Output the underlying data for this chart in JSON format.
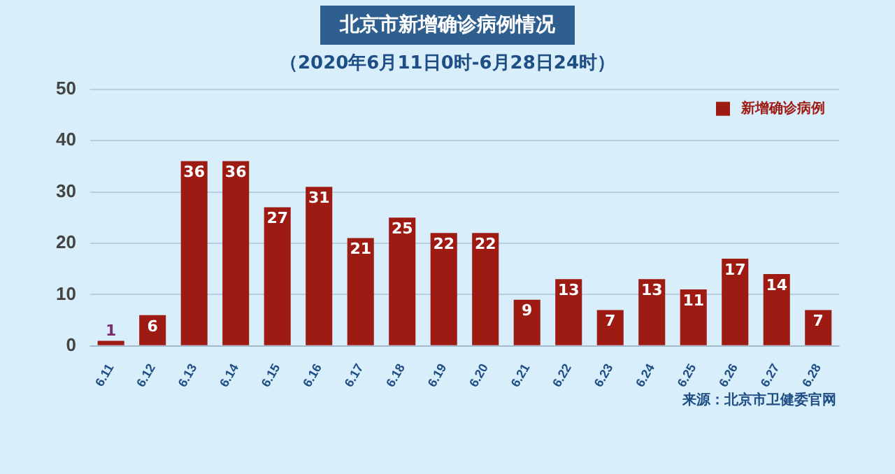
{
  "chart_data": {
    "type": "bar",
    "title": "北京市新增确诊病例情况",
    "subtitle": "（2020年6月11日0时-6月28日24时）",
    "categories": [
      "6.11",
      "6.12",
      "6.13",
      "6.14",
      "6.15",
      "6.16",
      "6.17",
      "6.18",
      "6.19",
      "6.20",
      "6.21",
      "6.22",
      "6.23",
      "6.24",
      "6.25",
      "6.26",
      "6.27",
      "6.28"
    ],
    "series": [
      {
        "name": "新增确诊病例",
        "color": "#9e1b14",
        "values": [
          1,
          6,
          36,
          36,
          27,
          31,
          21,
          25,
          22,
          22,
          9,
          13,
          7,
          13,
          11,
          17,
          14,
          7
        ]
      }
    ],
    "ylim": [
      0,
      50
    ],
    "yticks": [
      0,
      10,
      20,
      30,
      40,
      50
    ],
    "grid": "y",
    "legend": "top right",
    "data_labels": true,
    "annotations": [
      "来源：北京市卫健委官网"
    ]
  }
}
